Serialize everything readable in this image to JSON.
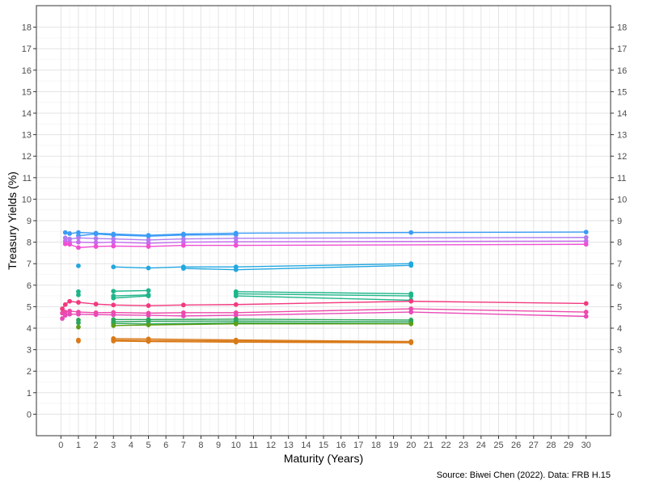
{
  "chart_data": {
    "type": "line",
    "xlabel": "Maturity (Years)",
    "ylabel": "Treasury Yields (%)",
    "caption": "Source: Biwei Chen (2022). Data: FRB H.15",
    "xlim": [
      -1.4,
      31.4
    ],
    "ylim": [
      -1,
      19
    ],
    "x_ticks": [
      0,
      1,
      2,
      3,
      4,
      5,
      6,
      7,
      8,
      9,
      10,
      11,
      12,
      13,
      14,
      15,
      16,
      17,
      18,
      19,
      20,
      21,
      22,
      23,
      24,
      25,
      26,
      27,
      28,
      29,
      30
    ],
    "y_ticks": [
      0,
      1,
      2,
      3,
      4,
      5,
      6,
      7,
      8,
      9,
      10,
      11,
      12,
      13,
      14,
      15,
      16,
      17,
      18
    ],
    "grid": true,
    "legend": "none",
    "mirrored_y_axis": true,
    "x_tick_labels": [
      "0",
      "1",
      "2",
      "3",
      "4",
      "5",
      "6",
      "7",
      "8",
      "9",
      "10",
      "11",
      "12",
      "13",
      "14",
      "15",
      "16",
      "17",
      "18",
      "19",
      "20",
      "21",
      "22",
      "23",
      "24",
      "25",
      "26",
      "27",
      "28",
      "29",
      "30"
    ],
    "y_tick_labels": [
      "0",
      "1",
      "2",
      "3",
      "4",
      "5",
      "6",
      "7",
      "8",
      "9",
      "10",
      "11",
      "12",
      "13",
      "14",
      "15",
      "16",
      "17",
      "18"
    ],
    "series": [
      {
        "color": "#3a9bf5",
        "x": [
          0.25,
          0.5,
          1,
          2,
          3,
          5,
          7,
          10,
          20,
          30
        ],
        "y": [
          8.45,
          8.4,
          8.45,
          8.42,
          8.38,
          8.32,
          8.38,
          8.42,
          8.45,
          8.47
        ]
      },
      {
        "color": "#3a9bf5",
        "x": [
          1,
          2,
          3,
          5,
          7,
          10
        ],
        "y": [
          8.3,
          8.38,
          8.33,
          8.28,
          8.33,
          8.35
        ]
      },
      {
        "color": "#b07df0",
        "x": [
          0.25,
          0.5,
          1,
          2,
          3,
          5,
          7,
          10,
          30
        ],
        "y": [
          8.2,
          8.15,
          8.2,
          8.17,
          8.15,
          8.1,
          8.15,
          8.18,
          8.22
        ]
      },
      {
        "color": "#c66bf0",
        "x": [
          0.25,
          0.5,
          1,
          2,
          3,
          5,
          7,
          10,
          30
        ],
        "y": [
          8.05,
          8.0,
          8.0,
          7.98,
          8.0,
          7.95,
          8.0,
          8.02,
          8.05
        ]
      },
      {
        "color": "#f04fd2",
        "x": [
          0.25,
          0.5,
          1,
          2,
          3,
          5,
          7,
          10,
          30
        ],
        "y": [
          7.92,
          7.9,
          7.75,
          7.8,
          7.82,
          7.8,
          7.85,
          7.85,
          7.9
        ]
      },
      {
        "color": "#22a7e0",
        "x": [
          1
        ],
        "y": [
          6.9
        ]
      },
      {
        "color": "#22a7e0",
        "x": [
          3,
          5,
          7,
          10,
          20
        ],
        "y": [
          6.85,
          6.8,
          6.85,
          6.85,
          7.0
        ]
      },
      {
        "color": "#22a7e0",
        "x": [
          7,
          10,
          20
        ],
        "y": [
          6.78,
          6.72,
          6.92
        ]
      },
      {
        "color": "#1fb58a",
        "x": [
          1
        ],
        "y": [
          5.7
        ]
      },
      {
        "color": "#1fb58a",
        "x": [
          1
        ],
        "y": [
          5.55
        ]
      },
      {
        "color": "#1fb58a",
        "x": [
          3,
          5
        ],
        "y": [
          5.72,
          5.75
        ]
      },
      {
        "color": "#1fb58a",
        "x": [
          3,
          5
        ],
        "y": [
          5.5,
          5.55
        ]
      },
      {
        "color": "#1fb58a",
        "x": [
          3,
          5
        ],
        "y": [
          5.4,
          5.5
        ]
      },
      {
        "color": "#1fb58a",
        "x": [
          10,
          20
        ],
        "y": [
          5.7,
          5.6
        ]
      },
      {
        "color": "#1fb58a",
        "x": [
          10,
          20
        ],
        "y": [
          5.6,
          5.5
        ]
      },
      {
        "color": "#1fb58a",
        "x": [
          10,
          20
        ],
        "y": [
          5.5,
          5.3
        ]
      },
      {
        "color": "#f2397e",
        "x": [
          0.08,
          0.25,
          0.5,
          1,
          2,
          3,
          5,
          7,
          10,
          20,
          30
        ],
        "y": [
          4.9,
          5.1,
          5.25,
          5.2,
          5.12,
          5.08,
          5.05,
          5.08,
          5.1,
          5.25,
          5.15
        ]
      },
      {
        "color": "#ec4aa9",
        "x": [
          0.08,
          0.25,
          0.5,
          1,
          2,
          3,
          5,
          7,
          10,
          20,
          30
        ],
        "y": [
          4.7,
          4.75,
          4.8,
          4.75,
          4.72,
          4.73,
          4.7,
          4.72,
          4.72,
          4.9,
          4.75
        ]
      },
      {
        "color": "#e84ab8",
        "x": [
          0.08,
          0.25,
          0.5,
          1,
          2,
          3,
          5,
          7,
          10,
          20,
          30
        ],
        "y": [
          4.45,
          4.6,
          4.65,
          4.65,
          4.63,
          4.62,
          4.6,
          4.57,
          4.6,
          4.75,
          4.55
        ]
      },
      {
        "color": "#2ba55a",
        "x": [
          1
        ],
        "y": [
          4.38
        ]
      },
      {
        "color": "#2ba55a",
        "x": [
          1
        ],
        "y": [
          4.25
        ]
      },
      {
        "color": "#2ba55a",
        "x": [
          3,
          5,
          10,
          20
        ],
        "y": [
          4.4,
          4.4,
          4.42,
          4.38
        ]
      },
      {
        "color": "#2ba55a",
        "x": [
          3,
          5,
          10,
          20
        ],
        "y": [
          4.3,
          4.32,
          4.33,
          4.3
        ]
      },
      {
        "color": "#2ba55a",
        "x": [
          3,
          5,
          10,
          20
        ],
        "y": [
          4.22,
          4.2,
          4.25,
          4.22
        ]
      },
      {
        "color": "#5e9e18",
        "x": [
          1
        ],
        "y": [
          4.05
        ]
      },
      {
        "color": "#5e9e18",
        "x": [
          3,
          5,
          10,
          20
        ],
        "y": [
          4.12,
          4.15,
          4.2,
          4.2
        ]
      },
      {
        "color": "#d97a19",
        "x": [
          1
        ],
        "y": [
          3.45
        ]
      },
      {
        "color": "#d97a19",
        "x": [
          1
        ],
        "y": [
          3.4
        ]
      },
      {
        "color": "#d97a19",
        "x": [
          3,
          5,
          10,
          20
        ],
        "y": [
          3.52,
          3.5,
          3.45,
          3.38
        ]
      },
      {
        "color": "#d97a19",
        "x": [
          3,
          5,
          10,
          20
        ],
        "y": [
          3.45,
          3.43,
          3.4,
          3.35
        ]
      },
      {
        "color": "#d97a19",
        "x": [
          3,
          5,
          10,
          20
        ],
        "y": [
          3.4,
          3.38,
          3.35,
          3.32
        ]
      }
    ]
  }
}
